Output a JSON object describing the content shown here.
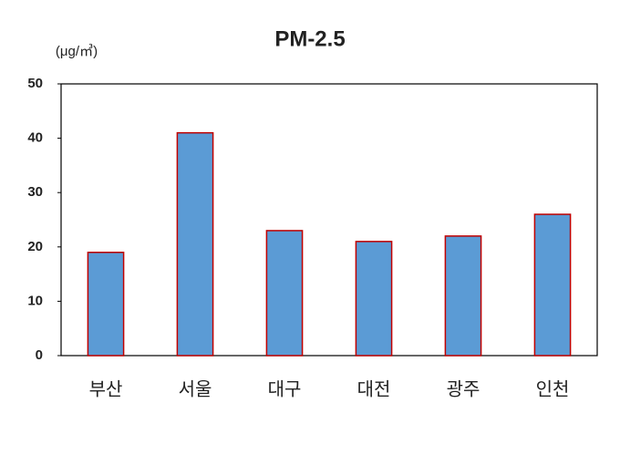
{
  "chart_data": {
    "type": "bar",
    "title": "PM-2.5",
    "y_label": "(μg/㎥)",
    "categories": [
      "부산",
      "서울",
      "대구",
      "대전",
      "광주",
      "인천"
    ],
    "values": [
      19,
      41,
      23,
      21,
      22,
      26
    ],
    "color": "#5b9bd5",
    "edge_color": "#c00000",
    "ylim": [
      0,
      50
    ],
    "yticks": [
      0,
      10,
      20,
      30,
      40,
      50
    ],
    "grid": false
  }
}
